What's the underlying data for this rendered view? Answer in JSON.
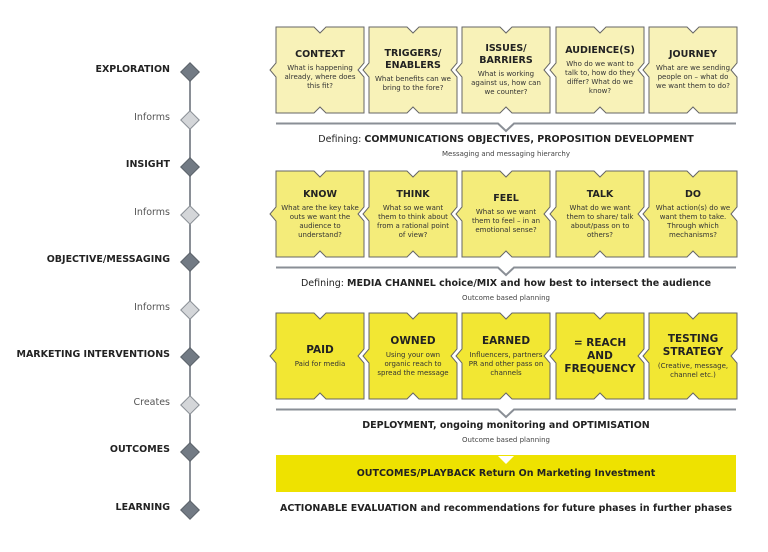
{
  "colors": {
    "row1": "#f8f2b8",
    "row2": "#f4ec7a",
    "row3": "#f2e733",
    "outcome": "#eee200",
    "diamond_dark": "#727a84",
    "diamond_light": "#d4d6d9",
    "line": "#8a8f96"
  },
  "timeline": [
    {
      "label": "EXPLORATION",
      "kind": "dark"
    },
    {
      "label": "Informs",
      "kind": "light"
    },
    {
      "label": "INSIGHT",
      "kind": "dark"
    },
    {
      "label": "Informs",
      "kind": "light"
    },
    {
      "label": "OBJECTIVE/MESSAGING",
      "kind": "dark"
    },
    {
      "label": "Informs",
      "kind": "light"
    },
    {
      "label": "MARKETING INTERVENTIONS",
      "kind": "dark"
    },
    {
      "label": "Creates",
      "kind": "light"
    },
    {
      "label": "OUTCOMES",
      "kind": "dark"
    },
    {
      "label": "LEARNING",
      "kind": "dark"
    }
  ],
  "rows": [
    {
      "cards": [
        {
          "title": "CONTEXT",
          "desc": "What is happening already, where does this fit?"
        },
        {
          "title": "TRIGGERS/ ENABLERS",
          "desc": "What benefits can we bring to the fore?"
        },
        {
          "title": "ISSUES/ BARRIERS",
          "desc": "What is working against us, how can we counter?"
        },
        {
          "title": "AUDIENCE(S)",
          "desc": "Who do we want to talk to, how do they differ? What do we know?"
        },
        {
          "title": "JOURNEY",
          "desc": "What are we sending people on – what do we want them to do?"
        }
      ],
      "defining_prefix": "Defining: ",
      "defining_bold": "COMMUNICATIONS OBJECTIVES, PROPOSITION DEVELOPMENT",
      "sub": "Messaging and messaging hierarchy"
    },
    {
      "cards": [
        {
          "title": "KNOW",
          "desc": "What are the key take outs we want the audience to understand?"
        },
        {
          "title": "THINK",
          "desc": "What so we want them to think about from a rational point of view?"
        },
        {
          "title": "FEEL",
          "desc": "What so we want them to feel – in an emotional sense?"
        },
        {
          "title": "TALK",
          "desc": "What do we want them to share/ talk about/pass on to others?"
        },
        {
          "title": "DO",
          "desc": "What action(s) do we want them to take. Through which mechanisms?"
        }
      ],
      "defining_prefix": "Defining: ",
      "defining_bold": "MEDIA CHANNEL choice/MIX",
      "defining_rest": " and how best to intersect the audience",
      "sub": "Outcome based planning"
    },
    {
      "cards": [
        {
          "title": "PAID",
          "desc": "Paid for media"
        },
        {
          "title": "OWNED",
          "desc": "Using your own organic reach to spread the message"
        },
        {
          "title": "EARNED",
          "desc": "Influencers, partners PR and other pass on channels"
        },
        {
          "title": "= REACH AND FREQUENCY",
          "desc": ""
        },
        {
          "title": "TESTING STRATEGY",
          "desc": "(Creative, message, channel etc.)"
        }
      ],
      "defining_bold": "DEPLOYMENT, ongoing monitoring and OPTIMISATION",
      "sub": "Outcome based planning"
    }
  ],
  "outcome_bar": "OUTCOMES/PLAYBACK Return On Marketing Investment",
  "final": "ACTIONABLE EVALUATION and recommendations for future phases in further phases"
}
